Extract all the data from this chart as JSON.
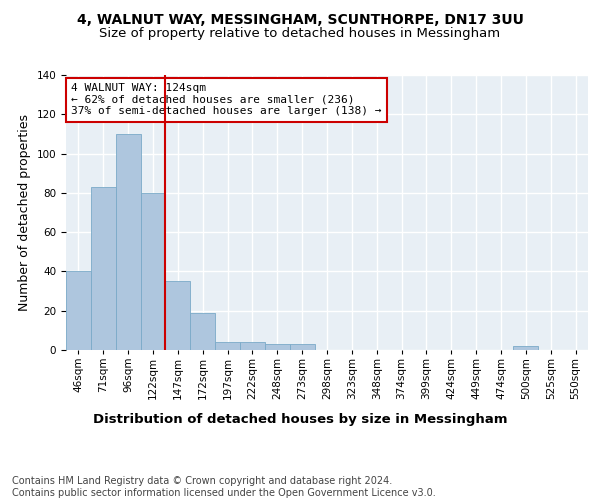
{
  "title": "4, WALNUT WAY, MESSINGHAM, SCUNTHORPE, DN17 3UU",
  "subtitle": "Size of property relative to detached houses in Messingham",
  "xlabel": "Distribution of detached houses by size in Messingham",
  "ylabel": "Number of detached properties",
  "bar_values": [
    40,
    83,
    110,
    80,
    35,
    19,
    4,
    4,
    3,
    3,
    0,
    0,
    0,
    0,
    0,
    0,
    0,
    0,
    2,
    0,
    0
  ],
  "bin_labels": [
    "46sqm",
    "71sqm",
    "96sqm",
    "122sqm",
    "147sqm",
    "172sqm",
    "197sqm",
    "222sqm",
    "248sqm",
    "273sqm",
    "298sqm",
    "323sqm",
    "348sqm",
    "374sqm",
    "399sqm",
    "424sqm",
    "449sqm",
    "474sqm",
    "500sqm",
    "525sqm",
    "550sqm"
  ],
  "bar_color": "#aec6de",
  "bar_edge_color": "#7aaac8",
  "highlight_index": 3,
  "vline_color": "#cc0000",
  "annotation_text": "4 WALNUT WAY: 124sqm\n← 62% of detached houses are smaller (236)\n37% of semi-detached houses are larger (138) →",
  "annotation_box_color": "#ffffff",
  "annotation_box_edge_color": "#cc0000",
  "ylim": [
    0,
    140
  ],
  "yticks": [
    0,
    20,
    40,
    60,
    80,
    100,
    120,
    140
  ],
  "footer_text": "Contains HM Land Registry data © Crown copyright and database right 2024.\nContains public sector information licensed under the Open Government Licence v3.0.",
  "background_color": "#e8eff5",
  "grid_color": "#ffffff",
  "title_fontsize": 10,
  "subtitle_fontsize": 9.5,
  "axis_label_fontsize": 9,
  "tick_fontsize": 7.5,
  "annotation_fontsize": 8,
  "footer_fontsize": 7
}
